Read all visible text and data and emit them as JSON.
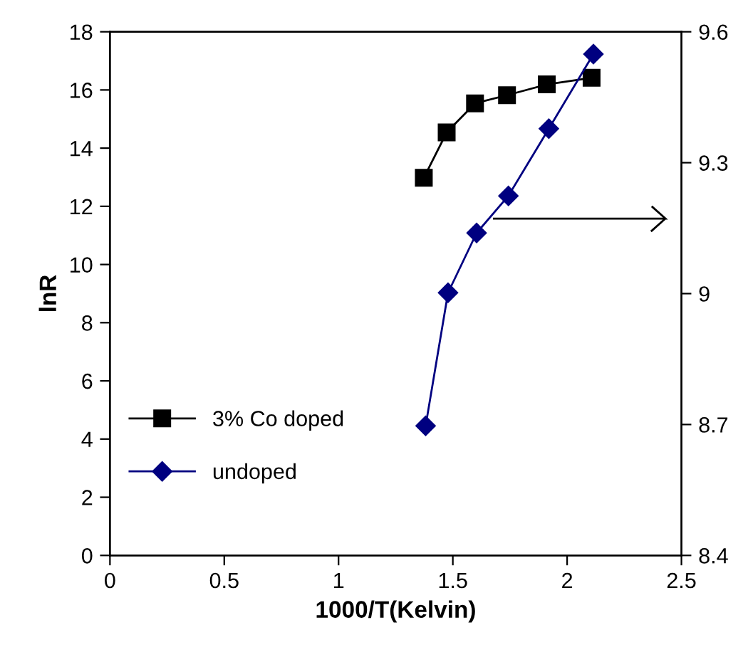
{
  "chart_data": {
    "type": "line",
    "xlabel": "1000/T(Kelvin)",
    "ylabel": "lnR",
    "xlim": [
      0,
      2.5
    ],
    "xticks": [
      0,
      0.5,
      1,
      1.5,
      2,
      2.5
    ],
    "ylim": [
      0,
      18
    ],
    "yticks": [
      0,
      2,
      4,
      6,
      8,
      10,
      12,
      14,
      16,
      18
    ],
    "y2lim": [
      8.4,
      9.6
    ],
    "y2ticks": [
      8.4,
      8.7,
      9,
      9.3,
      9.6
    ],
    "grid": false,
    "legend": "bottom left",
    "series": [
      {
        "name": "3% Co doped",
        "color": "#000000",
        "marker": "square",
        "x": [
          1.373,
          1.473,
          1.597,
          1.737,
          1.911,
          2.107
        ],
        "values": [
          12.98,
          14.54,
          15.54,
          15.82,
          16.19,
          16.42
        ]
      },
      {
        "name": "undoped",
        "color": "#000080",
        "marker": "diamond",
        "axis": "y2",
        "x": [
          1.381,
          1.479,
          1.604,
          1.743,
          1.92,
          2.115
        ],
        "values": [
          8.697,
          9.002,
          9.139,
          9.224,
          9.378,
          9.549
        ]
      }
    ]
  }
}
